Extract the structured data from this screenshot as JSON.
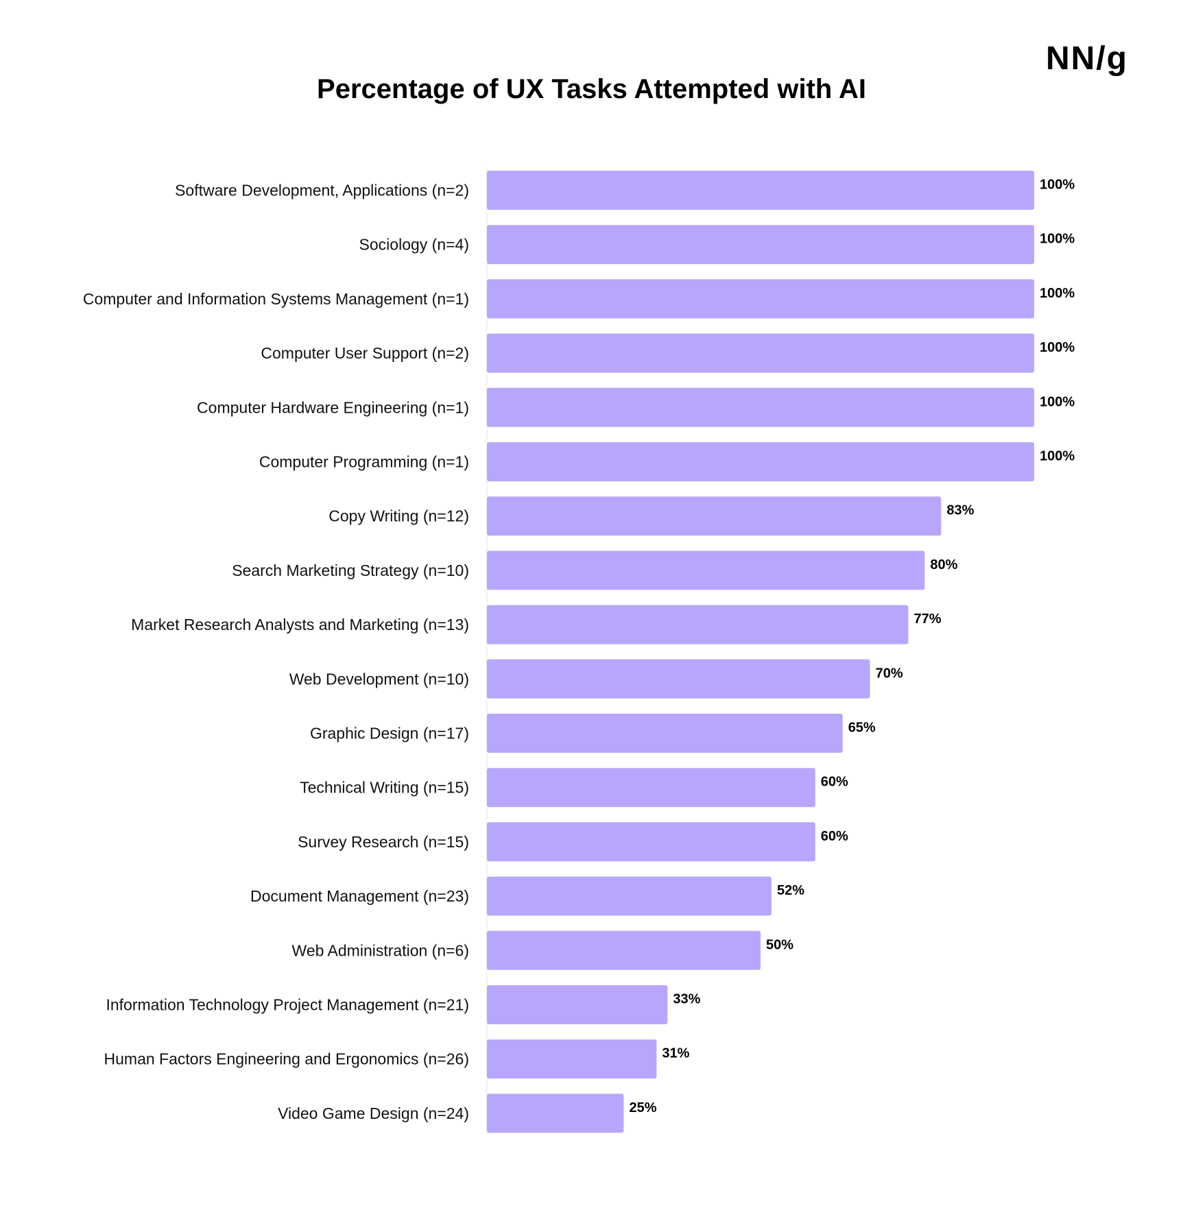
{
  "logo": {
    "text": "NN/g"
  },
  "chart_data": {
    "type": "bar",
    "orientation": "horizontal",
    "title": "Percentage of UX Tasks Attempted with AI",
    "xlabel": "",
    "ylabel": "",
    "xlim": [
      0,
      100
    ],
    "grid": false,
    "bar_color": "#b8a6fd",
    "categories": [
      "Software Development, Applications (n=2)",
      "Sociology (n=4)",
      "Computer and Information Systems Management (n=1)",
      "Computer User Support (n=2)",
      "Computer Hardware Engineering (n=1)",
      "Computer Programming (n=1)",
      "Copy Writing (n=12)",
      "Search Marketing Strategy (n=10)",
      "Market Research Analysts and Marketing (n=13)",
      "Web Development (n=10)",
      "Graphic Design (n=17)",
      "Technical Writing (n=15)",
      "Survey Research (n=15)",
      "Document Management (n=23)",
      "Web Administration (n=6)",
      "Information Technology Project Management (n=21)",
      "Human Factors Engineering and Ergonomics (n=26)",
      "Video Game Design (n=24)"
    ],
    "values": [
      100,
      100,
      100,
      100,
      100,
      100,
      83,
      80,
      77,
      70,
      65,
      60,
      60,
      52,
      50,
      33,
      31,
      25
    ],
    "value_labels": [
      "100%",
      "100%",
      "100%",
      "100%",
      "100%",
      "100%",
      "83%",
      "80%",
      "77%",
      "70%",
      "65%",
      "60%",
      "60%",
      "52%",
      "50%",
      "33%",
      "31%",
      "25%"
    ]
  }
}
